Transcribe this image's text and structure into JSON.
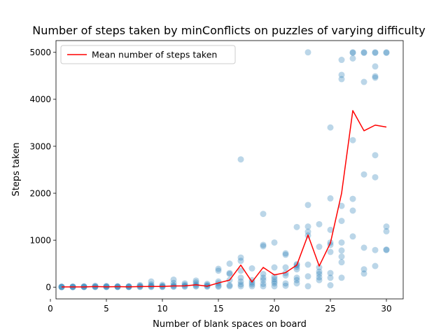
{
  "chart_data": {
    "type": "scatter",
    "title": "Number of steps taken by minConflicts on puzzles of varying difficulty",
    "xlabel": "Number of blank spaces on board",
    "ylabel": "Steps taken",
    "xlim": [
      0.5,
      31.5
    ],
    "ylim": [
      -250,
      5250
    ],
    "xticks": [
      0,
      5,
      10,
      15,
      20,
      25,
      30
    ],
    "yticks": [
      0,
      1000,
      2000,
      3000,
      4000,
      5000
    ],
    "grid": false,
    "legend_position": "upper-left",
    "colors": {
      "scatter": "#1f77b4",
      "mean_line": "#ff0000"
    },
    "series": [
      {
        "kind": "scatter",
        "points": [
          [
            1,
            0
          ],
          [
            1,
            3
          ],
          [
            1,
            7
          ],
          [
            1,
            12
          ],
          [
            2,
            0
          ],
          [
            2,
            4
          ],
          [
            2,
            8
          ],
          [
            2,
            15
          ],
          [
            3,
            2
          ],
          [
            3,
            6
          ],
          [
            3,
            10
          ],
          [
            3,
            18
          ],
          [
            4,
            3
          ],
          [
            4,
            8
          ],
          [
            4,
            15
          ],
          [
            4,
            30
          ],
          [
            5,
            2
          ],
          [
            5,
            8
          ],
          [
            5,
            15
          ],
          [
            5,
            25
          ],
          [
            6,
            3
          ],
          [
            6,
            8
          ],
          [
            6,
            12
          ],
          [
            6,
            20
          ],
          [
            7,
            3
          ],
          [
            7,
            7
          ],
          [
            7,
            12
          ],
          [
            7,
            20
          ],
          [
            8,
            5
          ],
          [
            8,
            12
          ],
          [
            8,
            25
          ],
          [
            8,
            45
          ],
          [
            9,
            5
          ],
          [
            9,
            15
          ],
          [
            9,
            30
          ],
          [
            9,
            60
          ],
          [
            9,
            120
          ],
          [
            10,
            5
          ],
          [
            10,
            12
          ],
          [
            10,
            25
          ],
          [
            10,
            50
          ],
          [
            11,
            8
          ],
          [
            11,
            20
          ],
          [
            11,
            40
          ],
          [
            11,
            90
          ],
          [
            11,
            160
          ],
          [
            12,
            10
          ],
          [
            12,
            25
          ],
          [
            12,
            50
          ],
          [
            12,
            80
          ],
          [
            13,
            15
          ],
          [
            13,
            30
          ],
          [
            13,
            60
          ],
          [
            13,
            100
          ],
          [
            13,
            140
          ],
          [
            14,
            10
          ],
          [
            14,
            25
          ],
          [
            14,
            45
          ],
          [
            14,
            70
          ],
          [
            15,
            10
          ],
          [
            15,
            30
          ],
          [
            15,
            80
          ],
          [
            15,
            120
          ],
          [
            15,
            350
          ],
          [
            15,
            390
          ],
          [
            16,
            20
          ],
          [
            16,
            40
          ],
          [
            16,
            150
          ],
          [
            16,
            280
          ],
          [
            16,
            300
          ],
          [
            16,
            500
          ],
          [
            17,
            20
          ],
          [
            17,
            60
          ],
          [
            17,
            120
          ],
          [
            17,
            200
          ],
          [
            17,
            350
          ],
          [
            17,
            560
          ],
          [
            17,
            630
          ],
          [
            17,
            2720
          ],
          [
            18,
            20
          ],
          [
            18,
            60
          ],
          [
            18,
            100
          ],
          [
            18,
            150
          ],
          [
            18,
            400
          ],
          [
            19,
            20
          ],
          [
            19,
            70
          ],
          [
            19,
            150
          ],
          [
            19,
            200
          ],
          [
            19,
            280
          ],
          [
            19,
            870
          ],
          [
            19,
            900
          ],
          [
            19,
            1560
          ],
          [
            20,
            20
          ],
          [
            20,
            80
          ],
          [
            20,
            120
          ],
          [
            20,
            170
          ],
          [
            20,
            220
          ],
          [
            20,
            420
          ],
          [
            20,
            950
          ],
          [
            21,
            30
          ],
          [
            21,
            80
          ],
          [
            21,
            250
          ],
          [
            21,
            300
          ],
          [
            21,
            420
          ],
          [
            21,
            690
          ],
          [
            21,
            720
          ],
          [
            22,
            80
          ],
          [
            22,
            150
          ],
          [
            22,
            200
          ],
          [
            22,
            380
          ],
          [
            22,
            430
          ],
          [
            22,
            470
          ],
          [
            22,
            490
          ],
          [
            22,
            1280
          ],
          [
            23,
            20
          ],
          [
            23,
            230
          ],
          [
            23,
            480
          ],
          [
            23,
            1100
          ],
          [
            23,
            1180
          ],
          [
            23,
            1290
          ],
          [
            23,
            1750
          ],
          [
            23,
            5000
          ],
          [
            24,
            150
          ],
          [
            24,
            210
          ],
          [
            24,
            280
          ],
          [
            24,
            330
          ],
          [
            24,
            420
          ],
          [
            24,
            860
          ],
          [
            24,
            1340
          ],
          [
            25,
            40
          ],
          [
            25,
            200
          ],
          [
            25,
            300
          ],
          [
            25,
            750
          ],
          [
            25,
            900
          ],
          [
            25,
            950
          ],
          [
            25,
            1220
          ],
          [
            25,
            1890
          ],
          [
            25,
            3400
          ],
          [
            26,
            200
          ],
          [
            26,
            530
          ],
          [
            26,
            650
          ],
          [
            26,
            780
          ],
          [
            26,
            950
          ],
          [
            26,
            1410
          ],
          [
            26,
            1730
          ],
          [
            26,
            4430
          ],
          [
            26,
            4520
          ],
          [
            26,
            4840
          ],
          [
            27,
            1080
          ],
          [
            27,
            1630
          ],
          [
            27,
            1880
          ],
          [
            27,
            3130
          ],
          [
            27,
            4870
          ],
          [
            27,
            4990
          ],
          [
            27,
            5000
          ],
          [
            28,
            290
          ],
          [
            28,
            380
          ],
          [
            28,
            840
          ],
          [
            28,
            2400
          ],
          [
            28,
            4370
          ],
          [
            28,
            4990
          ],
          [
            28,
            5000
          ],
          [
            29,
            450
          ],
          [
            29,
            790
          ],
          [
            29,
            2340
          ],
          [
            29,
            2810
          ],
          [
            29,
            4460
          ],
          [
            29,
            4490
          ],
          [
            29,
            4700
          ],
          [
            29,
            4990
          ],
          [
            29,
            5000
          ],
          [
            30,
            790
          ],
          [
            30,
            800
          ],
          [
            30,
            1190
          ],
          [
            30,
            1290
          ],
          [
            30,
            4990
          ],
          [
            30,
            5000
          ]
        ]
      },
      {
        "kind": "line",
        "name": "Mean number of steps taken",
        "x": [
          1,
          2,
          3,
          4,
          5,
          6,
          7,
          8,
          9,
          10,
          11,
          12,
          13,
          14,
          15,
          16,
          17,
          18,
          19,
          20,
          21,
          22,
          23,
          24,
          25,
          26,
          27,
          28,
          29,
          30
        ],
        "y": [
          5,
          5,
          5,
          12,
          8,
          10,
          8,
          12,
          15,
          15,
          25,
          28,
          50,
          20,
          90,
          150,
          470,
          110,
          420,
          260,
          310,
          470,
          1110,
          450,
          940,
          2000,
          3760,
          3330,
          3450,
          3410
        ]
      }
    ]
  }
}
